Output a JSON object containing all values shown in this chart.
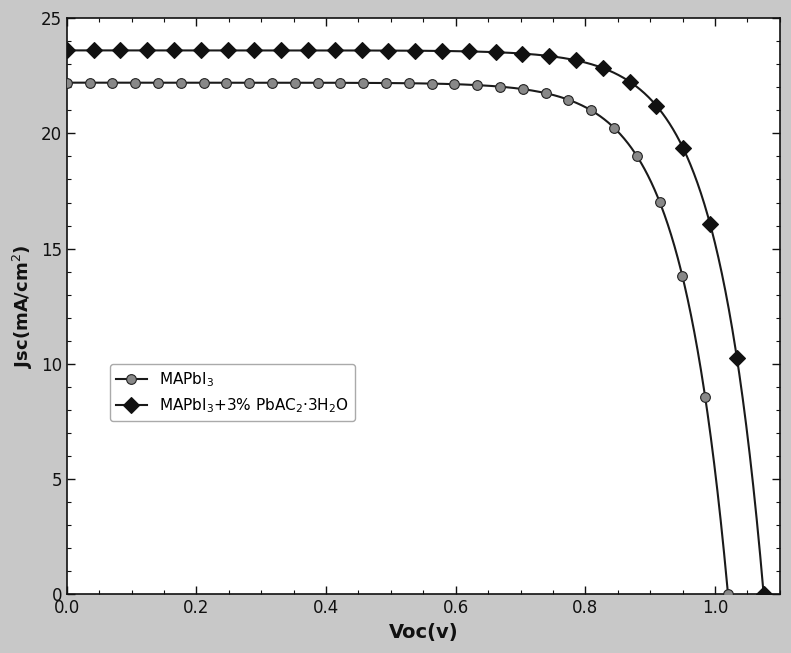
{
  "title": "",
  "xlabel": "Voc(v)",
  "ylabel": "Jsc(mA/cm$^2$)",
  "xlim": [
    0.0,
    1.1
  ],
  "ylim": [
    0.0,
    25.0
  ],
  "xticks": [
    0.0,
    0.2,
    0.4,
    0.6,
    0.8,
    1.0
  ],
  "yticks": [
    0,
    5,
    10,
    15,
    20,
    25
  ],
  "line_color": "#1a1a1a",
  "bg_color": "#ffffff",
  "fig_bg_color": "#c8c8c8",
  "curve1": {
    "label": "MAPbI$_3$",
    "Jsc": 22.2,
    "Voc": 1.02,
    "n_ideality": 2.8,
    "marker": "o",
    "markersize": 7,
    "n_markers": 30
  },
  "curve2": {
    "label": "MAPbI$_3$+3% PbAC$_2$·3H$_2$O",
    "Jsc": 23.6,
    "Voc": 1.075,
    "n_ideality": 2.8,
    "marker": "D",
    "markersize": 8,
    "n_markers": 27
  }
}
